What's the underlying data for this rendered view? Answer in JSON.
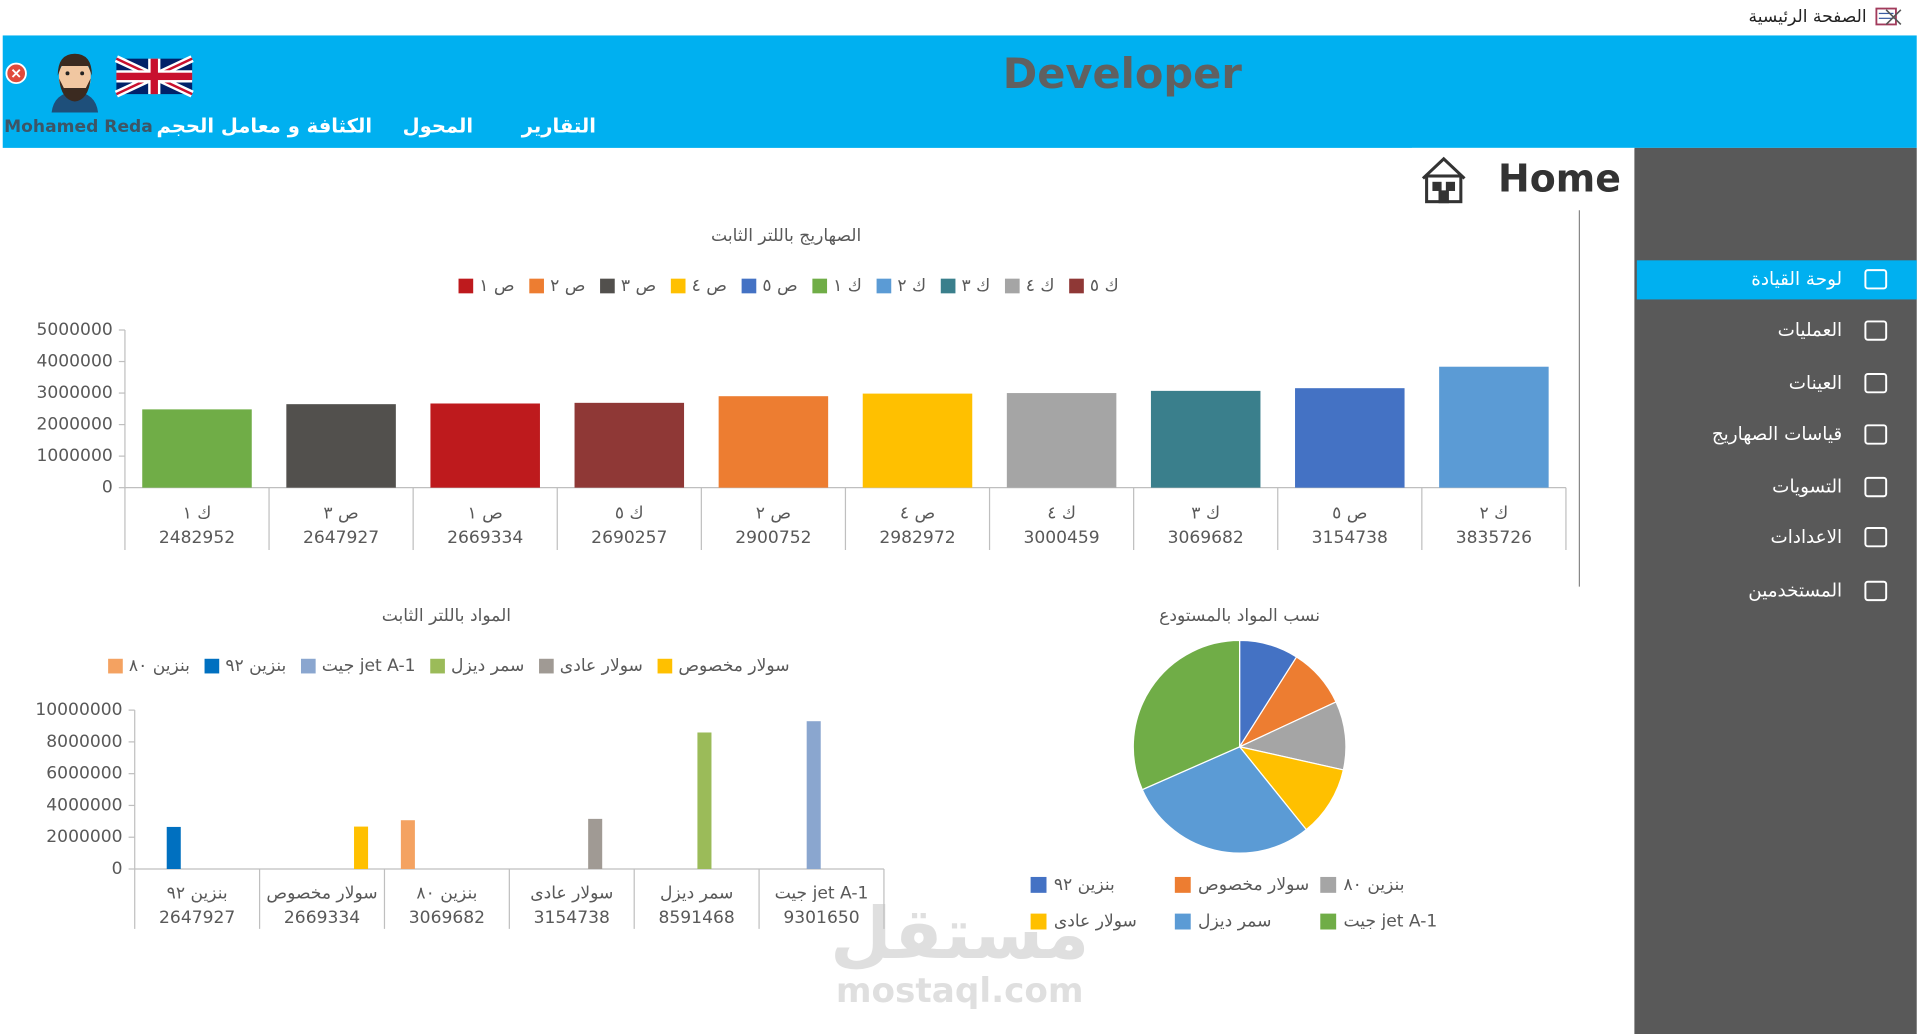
{
  "window": {
    "title": "الصفحة الرئيسية"
  },
  "header": {
    "brand": "Developer",
    "user": "Mohamed Reda",
    "menu": [
      "الكثافة و معامل الحجم",
      "المحول",
      "التقارير"
    ]
  },
  "page_title": "Home",
  "sidebar": {
    "items": [
      "لوحة القيادة",
      "العمليات",
      "العينات",
      "قياسات الصهاريج",
      "التسويات",
      "الاعدادات",
      "المستخدمين"
    ],
    "active": 0
  },
  "watermark": {
    "arabic": "مستقل",
    "latin": "mostaql.com"
  },
  "chart_data": [
    {
      "type": "bar",
      "stacked": true,
      "title": "الصهاريج باللتر الثابت",
      "categories": [
        "ك ١",
        "ص ٣",
        "ص ١",
        "ك ٥",
        "ص ٢",
        "ص ٤",
        "ك ٤",
        "ك ٣",
        "ص ٥",
        "ك ٢"
      ],
      "series": [
        {
          "name": "ص ١",
          "color": "#be1a1d",
          "values": [
            null,
            null,
            2669334,
            null,
            null,
            null,
            null,
            null,
            null,
            null
          ]
        },
        {
          "name": "ص ٢",
          "color": "#ed7d31",
          "values": [
            null,
            null,
            null,
            null,
            2900752,
            null,
            null,
            null,
            null,
            null
          ]
        },
        {
          "name": "ص ٣",
          "color": "#52504d",
          "values": [
            null,
            2647927,
            null,
            null,
            null,
            null,
            null,
            null,
            null,
            null
          ]
        },
        {
          "name": "ص ٤",
          "color": "#ffc000",
          "values": [
            null,
            null,
            null,
            null,
            null,
            2982972,
            null,
            null,
            null,
            null
          ]
        },
        {
          "name": "ص ٥",
          "color": "#4472c4",
          "values": [
            null,
            null,
            null,
            null,
            null,
            null,
            null,
            null,
            3154738,
            null
          ]
        },
        {
          "name": "ك ١",
          "color": "#70ad47",
          "values": [
            2482952,
            null,
            null,
            null,
            null,
            null,
            null,
            null,
            null,
            null
          ]
        },
        {
          "name": "ك ٢",
          "color": "#5b9bd5",
          "values": [
            null,
            null,
            null,
            null,
            null,
            null,
            null,
            null,
            null,
            3835726
          ]
        },
        {
          "name": "ك ٣",
          "color": "#3a7f8c",
          "values": [
            null,
            null,
            null,
            null,
            null,
            null,
            null,
            3069682,
            null,
            null
          ]
        },
        {
          "name": "ك ٤",
          "color": "#a5a5a5",
          "values": [
            null,
            null,
            null,
            null,
            null,
            null,
            3000459,
            null,
            null,
            null
          ]
        },
        {
          "name": "ك ٥",
          "color": "#8f3836",
          "values": [
            null,
            null,
            null,
            2690257,
            null,
            null,
            null,
            null,
            null,
            null
          ]
        }
      ],
      "ylim": [
        0,
        5000000
      ],
      "yticks": [
        0,
        1000000,
        2000000,
        3000000,
        4000000,
        5000000
      ],
      "grid": false
    },
    {
      "type": "bar",
      "stacked": false,
      "title": "المواد باللتر الثابت",
      "categories": [
        "بنزين ٩٢",
        "سولار مخصوص",
        "بنزين ٨٠",
        "سولار عادى",
        "سمر ديزل",
        "جيت jet A-1"
      ],
      "series": [
        {
          "name": "بنزين ٨٠",
          "color": "#f4a261",
          "values": [
            null,
            null,
            3069682,
            null,
            null,
            null
          ]
        },
        {
          "name": "بنزين ٩٢",
          "color": "#0070c0",
          "values": [
            2647927,
            null,
            null,
            null,
            null,
            null
          ]
        },
        {
          "name": "جيت jet A-1",
          "color": "#8aa6cf",
          "values": [
            null,
            null,
            null,
            null,
            null,
            9301650
          ]
        },
        {
          "name": "سمر ديزل",
          "color": "#9bbb59",
          "values": [
            null,
            null,
            null,
            null,
            8591468,
            null
          ]
        },
        {
          "name": "سولار عادى",
          "color": "#a09a94",
          "values": [
            null,
            null,
            null,
            3154738,
            null,
            null
          ]
        },
        {
          "name": "سولار مخصوص",
          "color": "#ffc000",
          "values": [
            null,
            2669334,
            null,
            null,
            null,
            null
          ]
        }
      ],
      "ylim": [
        0,
        10000000
      ],
      "yticks": [
        0,
        2000000,
        4000000,
        6000000,
        8000000,
        10000000
      ],
      "grid": false
    },
    {
      "type": "pie",
      "title": "نسب المواد بالمستودع",
      "categories": [
        "بنزين ٩٢",
        "سولار مخصوص",
        "بنزين ٨٠",
        "سولار عادى",
        "سمر ديزل",
        "جيت jet A-1"
      ],
      "values": [
        2647927,
        2669334,
        3069682,
        3154738,
        8591468,
        9301650
      ],
      "colors": [
        "#4472c4",
        "#ed7d31",
        "#a5a5a5",
        "#ffc000",
        "#5b9bd5",
        "#70ad47"
      ]
    }
  ]
}
